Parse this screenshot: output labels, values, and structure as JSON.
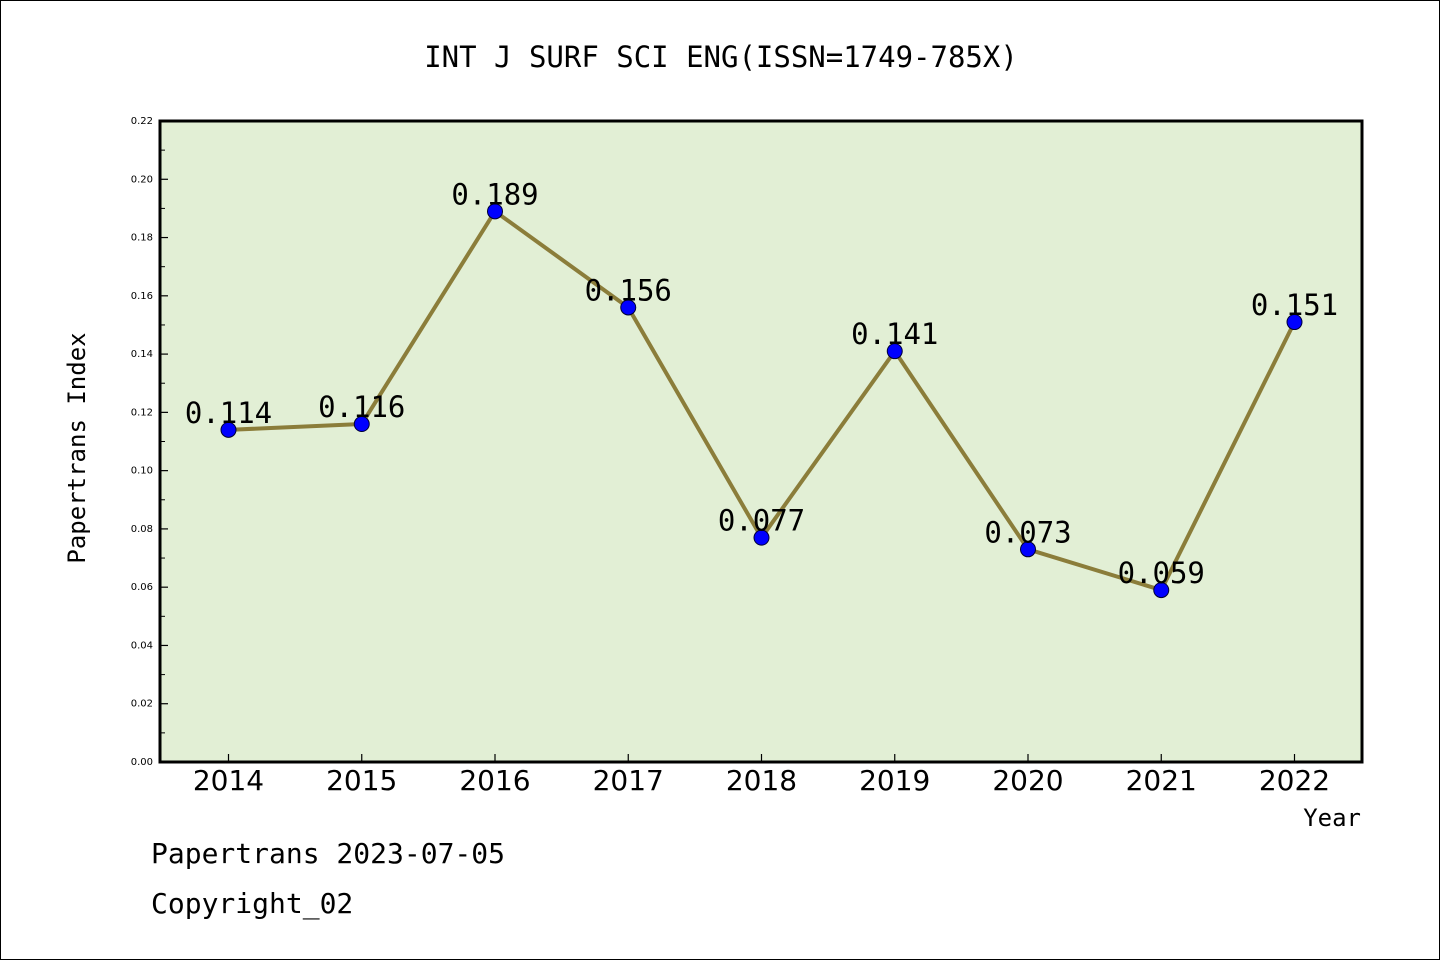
{
  "chart_data": {
    "type": "line",
    "title": "INT J SURF SCI ENG(ISSN=1749-785X)",
    "xlabel": "Year",
    "ylabel": "Papertrans Index",
    "categories": [
      "2014",
      "2015",
      "2016",
      "2017",
      "2018",
      "2019",
      "2020",
      "2021",
      "2022"
    ],
    "series": [
      {
        "values": [
          0.114,
          0.116,
          0.189,
          0.156,
          0.077,
          0.141,
          0.073,
          0.059,
          0.151
        ],
        "labels": [
          "0.114",
          "0.116",
          "0.189",
          "0.156",
          "0.077",
          "0.141",
          "0.073",
          "0.059",
          "0.151"
        ]
      }
    ],
    "ylim": [
      0,
      0.22
    ],
    "yticks": [
      "0.00",
      "0.02",
      "0.04",
      "0.06",
      "0.08",
      "0.10",
      "0.12",
      "0.14",
      "0.16",
      "0.18",
      "0.20",
      "0.22"
    ],
    "grid": false,
    "colors": {
      "plot_background": "#e2efd5",
      "line": "#8b7d3a",
      "marker": "#0000ff",
      "frame": "#000000"
    }
  },
  "footer": {
    "line1": "Papertrans 2023-07-05",
    "line2": "Copyright_02"
  }
}
